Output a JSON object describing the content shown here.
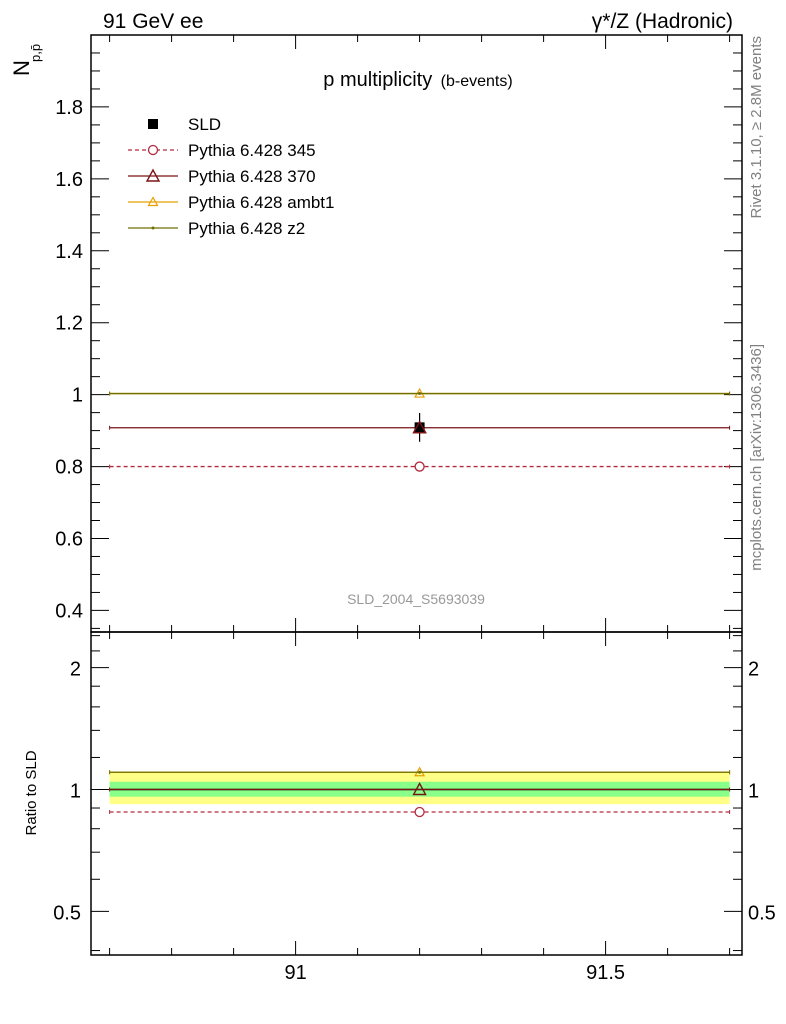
{
  "header": {
    "left": "91 GeV ee",
    "right": "γ*/Z (Hadronic)"
  },
  "side_labels": {
    "rivet": "Rivet 3.1.10, ≥ 2.8M events",
    "mcplots": "mcplots.cern.ch [arXiv:1306.3436]"
  },
  "chart_data": {
    "type": "scatter",
    "title_main": "p multiplicity",
    "title_sub": "(b-events)",
    "ylabel_main": "N",
    "ylabel_sub": "p,p̄",
    "ylabel_ratio": "Ratio to SLD",
    "watermark": "SLD_2004_S5693039",
    "x_range": [
      90.67,
      91.72
    ],
    "x_ticks": [
      91,
      91.5
    ],
    "x_tick_labels": [
      "91",
      "91.5"
    ],
    "main_ylim": [
      0.34,
      2.0
    ],
    "main_y_ticks": [
      0.4,
      0.6,
      0.8,
      1.0,
      1.2,
      1.4,
      1.6,
      1.8
    ],
    "main_y_tick_labels": [
      "0.4",
      "0.6",
      "0.8",
      "1",
      "1.2",
      "1.4",
      "1.6",
      "1.8"
    ],
    "ratio_ylim": [
      0.39,
      2.45
    ],
    "ratio_log": true,
    "ratio_y_ticks": [
      0.5,
      1,
      2
    ],
    "ratio_y_tick_labels": [
      "0.5",
      "1",
      "2"
    ],
    "bin": {
      "lo": 90.7,
      "hi": 91.7,
      "center": 91.2
    },
    "data": {
      "name": "SLD",
      "value": 0.909,
      "err": 0.04
    },
    "series": [
      {
        "name": "Pythia 6.428 345",
        "value": 0.8,
        "ratio": 0.88,
        "color": "#b22a3f",
        "style": "dashed",
        "marker": "circle"
      },
      {
        "name": "Pythia 6.428 370",
        "value": 0.908,
        "ratio": 1.0,
        "color": "#7a1515",
        "style": "solid",
        "marker": "triangle"
      },
      {
        "name": "Pythia 6.428 ambt1",
        "value": 1.003,
        "ratio": 1.103,
        "color": "#e8a000",
        "style": "solid",
        "marker": "triangle-small"
      },
      {
        "name": "Pythia 6.428 z2",
        "value": 1.003,
        "ratio": 1.103,
        "color": "#707000",
        "style": "solid",
        "marker": "dot"
      }
    ],
    "ratio_bands": [
      {
        "band": "outer",
        "lo": 0.92,
        "hi": 1.1,
        "color": "#ffff88"
      },
      {
        "band": "inner",
        "lo": 0.96,
        "hi": 1.045,
        "color": "#88ff88"
      }
    ]
  }
}
